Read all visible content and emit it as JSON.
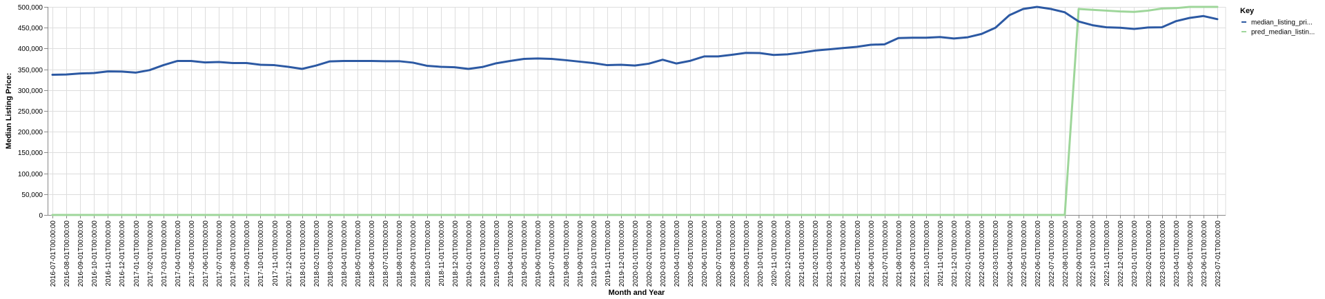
{
  "chart_data": {
    "type": "line",
    "xlabel": "Month and Year",
    "ylabel": "Median Listing Price:",
    "ylim": [
      0,
      500000
    ],
    "yticks": [
      {
        "value": 0,
        "label": "0"
      },
      {
        "value": 50000,
        "label": "50,000"
      },
      {
        "value": 100000,
        "label": "100,000"
      },
      {
        "value": 150000,
        "label": "150,000"
      },
      {
        "value": 200000,
        "label": "200,000"
      },
      {
        "value": 250000,
        "label": "250,000"
      },
      {
        "value": 300000,
        "label": "300,000"
      },
      {
        "value": 350000,
        "label": "350,000"
      },
      {
        "value": 400000,
        "label": "400,000"
      },
      {
        "value": 450000,
        "label": "450,000"
      },
      {
        "value": 500000,
        "label": "500,000"
      }
    ],
    "grid": true,
    "legend": {
      "title": "Key",
      "position": "right"
    },
    "categories": [
      "2016-07-01T00:00:00",
      "2016-08-01T00:00:00",
      "2016-09-01T00:00:00",
      "2016-10-01T00:00:00",
      "2016-11-01T00:00:00",
      "2016-12-01T00:00:00",
      "2017-01-01T00:00:00",
      "2017-02-01T00:00:00",
      "2017-03-01T00:00:00",
      "2017-04-01T00:00:00",
      "2017-05-01T00:00:00",
      "2017-06-01T00:00:00",
      "2017-07-01T00:00:00",
      "2017-08-01T00:00:00",
      "2017-09-01T00:00:00",
      "2017-10-01T00:00:00",
      "2017-11-01T00:00:00",
      "2017-12-01T00:00:00",
      "2018-01-01T00:00:00",
      "2018-02-01T00:00:00",
      "2018-03-01T00:00:00",
      "2018-04-01T00:00:00",
      "2018-05-01T00:00:00",
      "2018-06-01T00:00:00",
      "2018-07-01T00:00:00",
      "2018-08-01T00:00:00",
      "2018-09-01T00:00:00",
      "2018-10-01T00:00:00",
      "2018-11-01T00:00:00",
      "2018-12-01T00:00:00",
      "2019-01-01T00:00:00",
      "2019-02-01T00:00:00",
      "2019-03-01T00:00:00",
      "2019-04-01T00:00:00",
      "2019-05-01T00:00:00",
      "2019-06-01T00:00:00",
      "2019-07-01T00:00:00",
      "2019-08-01T00:00:00",
      "2019-09-01T00:00:00",
      "2019-10-01T00:00:00",
      "2019-11-01T00:00:00",
      "2019-12-01T00:00:00",
      "2020-01-01T00:00:00",
      "2020-02-01T00:00:00",
      "2020-03-01T00:00:00",
      "2020-04-01T00:00:00",
      "2020-05-01T00:00:00",
      "2020-06-01T00:00:00",
      "2020-07-01T00:00:00",
      "2020-08-01T00:00:00",
      "2020-09-01T00:00:00",
      "2020-10-01T00:00:00",
      "2020-11-01T00:00:00",
      "2020-12-01T00:00:00",
      "2021-01-01T00:00:00",
      "2021-02-01T00:00:00",
      "2021-03-01T00:00:00",
      "2021-04-01T00:00:00",
      "2021-05-01T00:00:00",
      "2021-06-01T00:00:00",
      "2021-07-01T00:00:00",
      "2021-08-01T00:00:00",
      "2021-09-01T00:00:00",
      "2021-10-01T00:00:00",
      "2021-11-01T00:00:00",
      "2021-12-01T00:00:00",
      "2022-01-01T00:00:00",
      "2022-02-01T00:00:00",
      "2022-03-01T00:00:00",
      "2022-04-01T00:00:00",
      "2022-05-01T00:00:00",
      "2022-06-01T00:00:00",
      "2022-07-01T00:00:00",
      "2022-08-01T00:00:00",
      "2022-09-01T00:00:00",
      "2022-10-01T00:00:00",
      "2022-11-01T00:00:00",
      "2022-12-01T00:00:00",
      "2023-01-01T00:00:00",
      "2023-02-01T00:00:00",
      "2023-03-01T00:00:00",
      "2023-04-01T00:00:00",
      "2023-05-01T00:00:00",
      "2023-06-01T00:00:00",
      "2023-07-01T00:00:00"
    ],
    "series": [
      {
        "name": "median_listing_pri...",
        "color": "#2c59a3",
        "values": [
          337000,
          337500,
          340000,
          341000,
          345000,
          344500,
          342000,
          348000,
          360000,
          370000,
          370000,
          366500,
          367500,
          365000,
          365000,
          361000,
          360000,
          356000,
          351000,
          359000,
          369000,
          370000,
          370000,
          370000,
          369500,
          369500,
          366000,
          358500,
          356000,
          355000,
          351000,
          355500,
          364500,
          370000,
          375000,
          376000,
          375000,
          372000,
          368500,
          365000,
          360000,
          361000,
          359000,
          363500,
          373000,
          364000,
          370500,
          381000,
          381000,
          385000,
          389500,
          389000,
          384500,
          386000,
          390000,
          395000,
          398000,
          401000,
          404000,
          409000,
          410000,
          425000,
          426000,
          426000,
          427500,
          424000,
          427000,
          435000,
          450000,
          480000,
          495000,
          500000,
          495000,
          487000,
          465000,
          456000,
          451000,
          450000,
          447000,
          450500,
          451000,
          465500,
          473500,
          478000,
          470500
        ]
      },
      {
        "name": "pred_median_listin...",
        "color": "#9ed69a",
        "values": [
          0,
          0,
          0,
          0,
          0,
          0,
          0,
          0,
          0,
          0,
          0,
          0,
          0,
          0,
          0,
          0,
          0,
          0,
          0,
          0,
          0,
          0,
          0,
          0,
          0,
          0,
          0,
          0,
          0,
          0,
          0,
          0,
          0,
          0,
          0,
          0,
          0,
          0,
          0,
          0,
          0,
          0,
          0,
          0,
          0,
          0,
          0,
          0,
          0,
          0,
          0,
          0,
          0,
          0,
          0,
          0,
          0,
          0,
          0,
          0,
          0,
          0,
          0,
          0,
          0,
          0,
          0,
          0,
          0,
          0,
          0,
          0,
          0,
          0,
          495000,
          493000,
          491000,
          489000,
          488000,
          491000,
          496000,
          497000,
          500000,
          500000,
          500000
        ]
      }
    ]
  }
}
